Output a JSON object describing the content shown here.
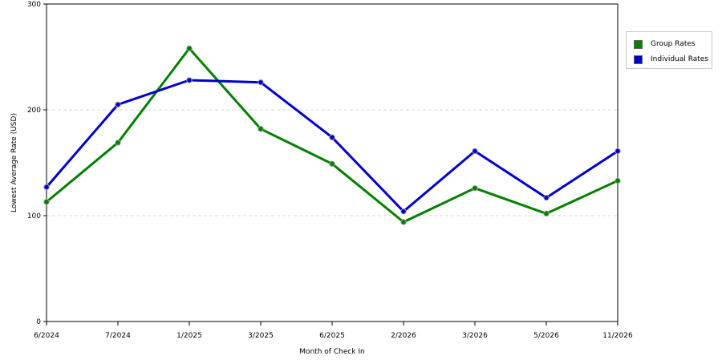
{
  "chart_data": {
    "type": "line",
    "xlabel": "Month of Check In",
    "ylabel": "Lowest Average Rate (USD)",
    "ylim": [
      0,
      300
    ],
    "yticks": [
      "0",
      "100",
      "200",
      "300"
    ],
    "categories": [
      "6/2024",
      "7/2024",
      "1/2025",
      "3/2025",
      "6/2025",
      "2/2026",
      "3/2026",
      "5/2026",
      "11/2026"
    ],
    "grid": "horizontal dashed",
    "legend_position": "right",
    "series": [
      {
        "name": "Group Rates",
        "color": "#008000",
        "values": [
          113,
          169,
          258,
          182,
          149,
          94,
          126,
          102,
          133
        ]
      },
      {
        "name": "Individual Rates",
        "color": "#0000cc",
        "values": [
          127,
          205,
          228,
          226,
          174,
          104,
          161,
          117,
          161
        ]
      }
    ]
  }
}
